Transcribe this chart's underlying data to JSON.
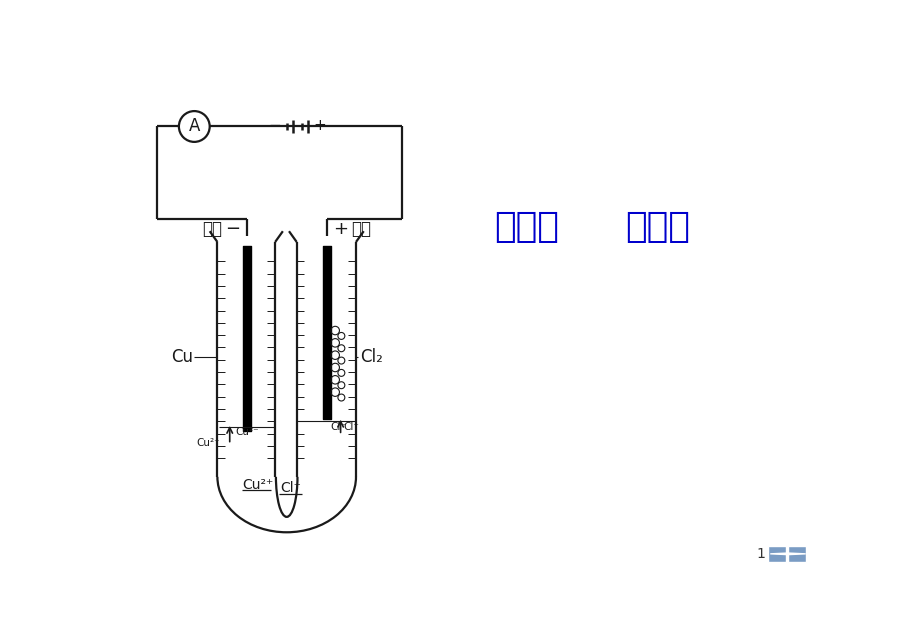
{
  "title_text1": "第三节",
  "title_text2": "电解池",
  "title_color": "#0000CC",
  "title_fontsize": 26,
  "bg_color": "#FFFFFF",
  "line_color": "#1a1a1a",
  "page_num": "1"
}
